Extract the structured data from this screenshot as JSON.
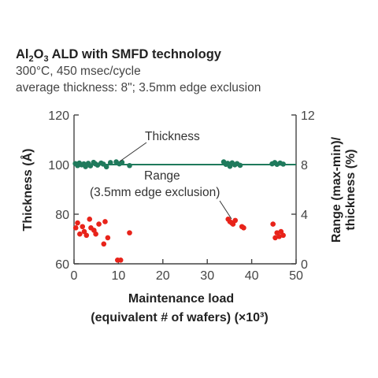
{
  "chart_data": {
    "type": "scatter",
    "title": {
      "prefix": "Al",
      "sub1": "2",
      "mid": "O",
      "sub2": "3",
      "rest": " ALD with SMFD technology"
    },
    "subtitle_lines": [
      "300°C, 450 msec/cycle",
      "average thickness: 8\"; 3.5mm edge exclusion"
    ],
    "xlabel_lines": [
      "Maintenance load",
      "(equivalent # of wafers) (×10³)"
    ],
    "ylabel_left": "Thickness (Å)",
    "ylabel_right_lines": [
      "Range (max-min)/",
      "thickness (%)"
    ],
    "xlim": [
      0,
      50
    ],
    "ylim_left": [
      60,
      120
    ],
    "ylim_right": [
      0,
      12
    ],
    "x_ticks": [
      "0",
      "10",
      "20",
      "30",
      "40",
      "50"
    ],
    "y_left_ticks": [
      "60",
      "80",
      "100",
      "120"
    ],
    "y_right_ticks": [
      "0",
      "4",
      "8",
      "12"
    ],
    "annotations": [
      {
        "text": "Thickness"
      },
      {
        "text": "Range"
      },
      {
        "text": "(3.5mm edge exclusion)"
      }
    ],
    "legend": "none",
    "grid": false,
    "series": [
      {
        "color": "#1f7a5c",
        "axis": "left",
        "trend_line_y": 100,
        "x": [
          0.3,
          0.8,
          1.2,
          1.7,
          2.2,
          2.6,
          3.2,
          3.7,
          4.4,
          4.8,
          5.3,
          6.1,
          6.6,
          7.3,
          8.2,
          9.5,
          10.2,
          10.8,
          12.5,
          33.7,
          34.2,
          34.6,
          35.1,
          35.6,
          36.2,
          36.7,
          37.4,
          44.6,
          45.2,
          45.7,
          46.4,
          47.1
        ],
        "y": [
          100.4,
          99.6,
          100.6,
          99.9,
          100.3,
          99.2,
          100.5,
          99.5,
          100.9,
          100.3,
          99.8,
          100.6,
          100.2,
          99.1,
          100.8,
          101.1,
          100.3,
          100.9,
          99.6,
          101.1,
          100.1,
          100.5,
          99.3,
          100.7,
          99.9,
          100.4,
          99.7,
          100.3,
          100.8,
          100.1,
          100.6,
          100.2
        ]
      },
      {
        "color": "#e8231a",
        "axis": "right",
        "x": [
          0.4,
          0.8,
          1.3,
          1.9,
          2.3,
          2.8,
          3.5,
          3.8,
          4.5,
          4.9,
          5.6,
          6.7,
          7.0,
          7.6,
          9.8,
          10.5,
          12.5,
          34.7,
          35.1,
          35.5,
          35.8,
          36.3,
          37.8,
          38.2,
          44.8,
          45.3,
          45.7,
          46.2,
          46.6,
          47.1
        ],
        "y": [
          2.9,
          3.3,
          2.4,
          3.0,
          2.6,
          2.3,
          3.6,
          2.9,
          2.7,
          2.4,
          3.2,
          1.6,
          3.4,
          2.1,
          0.3,
          0.3,
          2.5,
          3.6,
          3.4,
          3.3,
          3.2,
          3.5,
          3.0,
          2.9,
          3.2,
          2.1,
          2.5,
          2.2,
          2.6,
          2.3
        ]
      }
    ]
  }
}
